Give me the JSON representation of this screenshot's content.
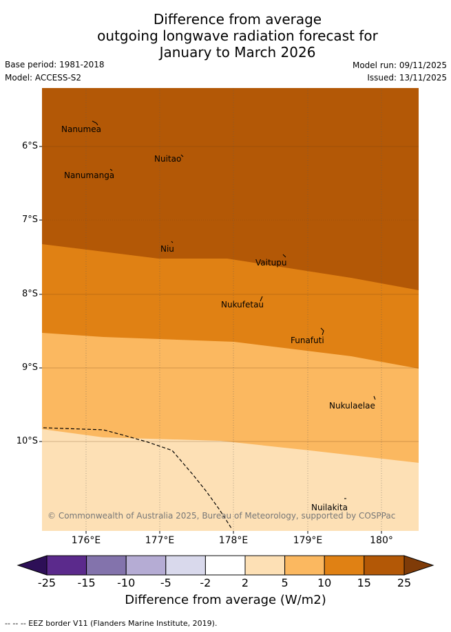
{
  "title": {
    "line1": "Difference from average",
    "line2": "outgoing longwave radiation forecast for",
    "line3": "January to March 2026"
  },
  "meta": {
    "base_period": "Base period: 1981-2018",
    "model": "Model: ACCESS-S2",
    "model_run": "Model run: 09/11/2025",
    "issued": "Issued: 13/11/2025"
  },
  "map": {
    "lat_labels": [
      "6°S",
      "7°S",
      "8°S",
      "9°S",
      "10°S"
    ],
    "lon_labels": [
      "176°E",
      "177°E",
      "178°E",
      "179°E",
      "180°"
    ],
    "islands": [
      {
        "name": "Nanumea"
      },
      {
        "name": "Nuitao"
      },
      {
        "name": "Nanumanga"
      },
      {
        "name": "Niu"
      },
      {
        "name": "Vaitupu"
      },
      {
        "name": "Nukufetau"
      },
      {
        "name": "Funafuti"
      },
      {
        "name": "Nukulaelae"
      },
      {
        "name": "Nuilakita"
      }
    ],
    "copyright": "© Commonwealth of Australia 2025, Bureau of Meteorology, supported by COSPPac"
  },
  "colorbar": {
    "title": "Difference from average (W/m2)",
    "ticks": [
      "-25",
      "-15",
      "-10",
      "-5",
      "-2",
      "2",
      "5",
      "10",
      "15",
      "25"
    ],
    "colors": {
      "extend_low": "#2d0f57",
      "b1": "#5b2a8c",
      "b2": "#8373ac",
      "b3": "#b5acd4",
      "b4": "#d9d9ec",
      "b5": "#ffffff",
      "b6": "#fde0b5",
      "b7": "#fbb860",
      "b8": "#e08114",
      "b9": "#b35806",
      "extend_high": "#7f3b08"
    }
  },
  "footnote": "-- -- -- EEZ border V11 (Flanders Marine Institute, 2019)."
}
